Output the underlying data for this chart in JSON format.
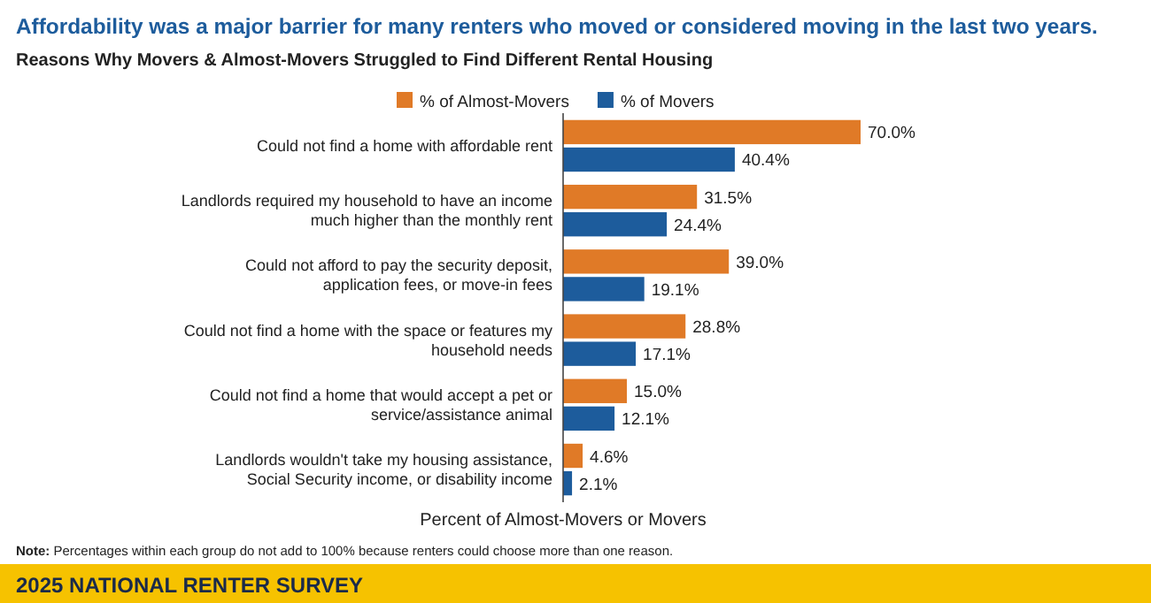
{
  "chart_data": {
    "type": "bar",
    "orientation": "horizontal",
    "title": "Affordability was a major barrier for many renters who moved or considered moving in the last two years.",
    "subtitle": "Reasons Why Movers & Almost-Movers Struggled to Find Different Rental Housing",
    "xlabel": "Percent of Almost-Movers or Movers",
    "categories": [
      "Could not find a home with affordable rent",
      "Landlords required my household to have an income much higher than the monthly rent",
      "Could not afford to pay the security deposit, application fees, or move-in fees",
      "Could not find a home with the space or features my household needs",
      "Could not find a home that would accept a pet or service/assistance animal",
      "Landlords wouldn't take my housing assistance, Social Security income, or disability income"
    ],
    "series": [
      {
        "name": "% of Almost-Movers",
        "color": "#e07a27",
        "values": [
          70.0,
          31.5,
          39.0,
          28.8,
          15.0,
          4.6
        ],
        "value_labels": [
          "70.0%",
          "31.5%",
          "39.0%",
          "28.8%",
          "15.0%",
          "4.6%"
        ]
      },
      {
        "name": "% of Movers",
        "color": "#1d5c9c",
        "values": [
          40.4,
          24.4,
          19.1,
          17.1,
          12.1,
          2.1
        ],
        "value_labels": [
          "40.4%",
          "24.4%",
          "19.1%",
          "17.1%",
          "12.1%",
          "2.1%"
        ]
      }
    ],
    "legend": "top",
    "annotations": [
      "Note: Percentages within each group do not add to 100% because renters could choose more than one reason.",
      "2025 NATIONAL RENTER SURVEY"
    ]
  }
}
